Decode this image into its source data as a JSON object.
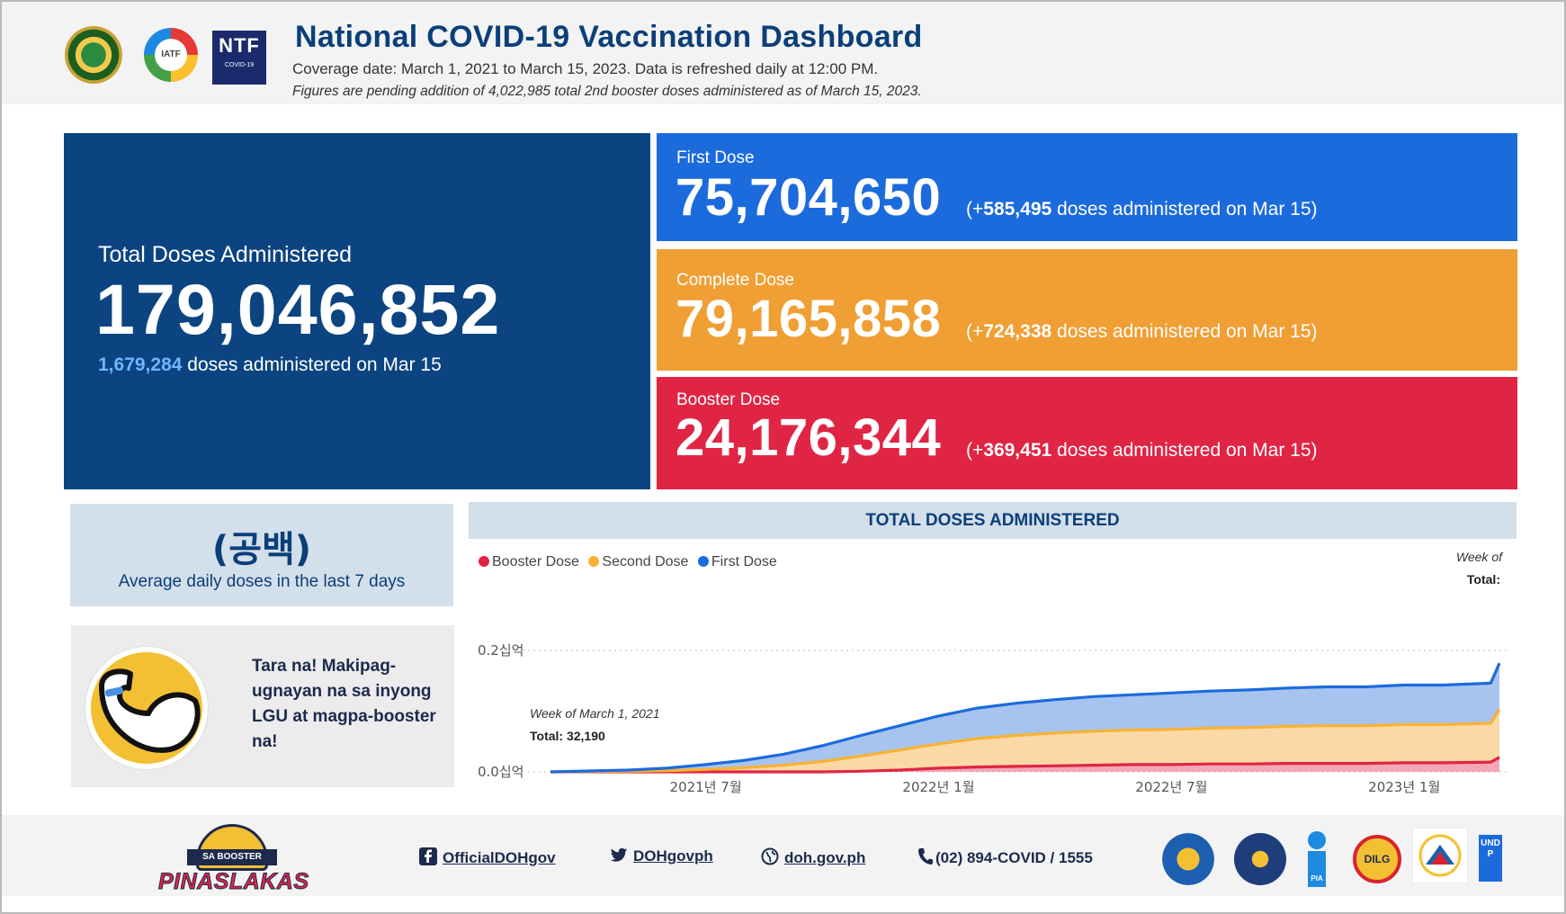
{
  "header": {
    "title": "National COVID-19 Vaccination Dashboard",
    "coverage": "Coverage date: March 1, 2021 to March 15, 2023. Data is refreshed daily at 12:00 PM.",
    "note": "Figures are pending addition of 4,022,985 total 2nd booster doses administered as of March 15, 2023.",
    "logos": {
      "iatf": "IATF",
      "ntf_big": "NTF",
      "ntf_small": "COVID-19"
    }
  },
  "total": {
    "label": "Total Doses Administered",
    "value": "179,046,852",
    "daily_value": "1,679,284",
    "daily_suffix": "doses administered on Mar 15"
  },
  "doses": {
    "first": {
      "label": "First Dose",
      "value": "75,704,650",
      "inc_prefix": "(+",
      "inc_value": "585,495",
      "inc_suffix": "doses administered on Mar 15)"
    },
    "complete": {
      "label": "Complete Dose",
      "value": "79,165,858",
      "inc_prefix": "(+",
      "inc_value": "724,338",
      "inc_suffix": "doses administered on Mar 15)"
    },
    "booster": {
      "label": "Booster Dose",
      "value": "24,176,344",
      "inc_prefix": "(+",
      "inc_value": "369,451",
      "inc_suffix": "doses administered on Mar 15)"
    }
  },
  "average": {
    "value": "(공백)",
    "label": "Average daily doses in the last 7 days"
  },
  "promo": {
    "text": "Tara na! Makipag-ugnayan na sa inyong LGU at magpa-booster na!"
  },
  "chart_panel": {
    "header": "TOTAL DOSES ADMINISTERED",
    "week_of": "Week of",
    "total_label": "Total:",
    "tooltip_week": "Week of March 1, 2021",
    "tooltip_total": "Total: 32,190"
  },
  "chart_data": {
    "type": "area",
    "title": "TOTAL DOSES ADMINISTERED",
    "stacked": true,
    "x": [
      "2021-03",
      "2021-04",
      "2021-05",
      "2021-06",
      "2021-07",
      "2021-08",
      "2021-09",
      "2021-10",
      "2021-11",
      "2021-12",
      "2022-01",
      "2022-02",
      "2022-03",
      "2022-04",
      "2022-05",
      "2022-06",
      "2022-07",
      "2022-08",
      "2022-09",
      "2022-10",
      "2022-11",
      "2022-12",
      "2023-01",
      "2023-02",
      "2023-03-08",
      "2023-03-15"
    ],
    "series": [
      {
        "name": "Booster Dose",
        "color": "#e02544",
        "values": [
          0,
          0,
          0,
          0,
          0,
          0,
          0,
          0,
          0.001,
          0.003,
          0.006,
          0.008,
          0.009,
          0.01,
          0.011,
          0.012,
          0.012,
          0.013,
          0.013,
          0.014,
          0.014,
          0.014,
          0.015,
          0.015,
          0.016,
          0.024
        ]
      },
      {
        "name": "Second Dose",
        "color": "#f9b233",
        "values": [
          0,
          0.0005,
          0.001,
          0.002,
          0.004,
          0.007,
          0.011,
          0.017,
          0.025,
          0.033,
          0.04,
          0.047,
          0.051,
          0.054,
          0.056,
          0.057,
          0.058,
          0.059,
          0.06,
          0.061,
          0.062,
          0.062,
          0.063,
          0.063,
          0.064,
          0.079
        ]
      },
      {
        "name": "First Dose",
        "color": "#1c6bdc",
        "values": [
          0,
          0.001,
          0.002,
          0.004,
          0.008,
          0.012,
          0.018,
          0.026,
          0.034,
          0.04,
          0.046,
          0.05,
          0.053,
          0.055,
          0.057,
          0.058,
          0.06,
          0.061,
          0.062,
          0.063,
          0.064,
          0.064,
          0.065,
          0.065,
          0.066,
          0.076
        ]
      }
    ],
    "ylabel": "",
    "ytick_labels": [
      "0.0십억",
      "0.2십억"
    ],
    "ylim": [
      0,
      0.2
    ],
    "xtick_labels": [
      "2021년 7월",
      "2022년 1월",
      "2022년 7월",
      "2023년 1월"
    ],
    "xtick_positions": [
      "2021-07",
      "2022-01",
      "2022-07",
      "2023-01"
    ],
    "legend": [
      "Booster Dose",
      "Second Dose",
      "First Dose"
    ],
    "legend_position": "top-left",
    "grid": true
  },
  "footer": {
    "logo_top": "SA BOOSTER",
    "logo_word": "PINASLAKAS",
    "facebook": "OfficialDOHgov",
    "twitter": "DOHgovph",
    "web": "doh.gov.ph",
    "phone": "(02) 894-COVID / 1555",
    "partners": {
      "pia": "PIA",
      "dilg": "DILG",
      "undp": "UNDP"
    }
  }
}
